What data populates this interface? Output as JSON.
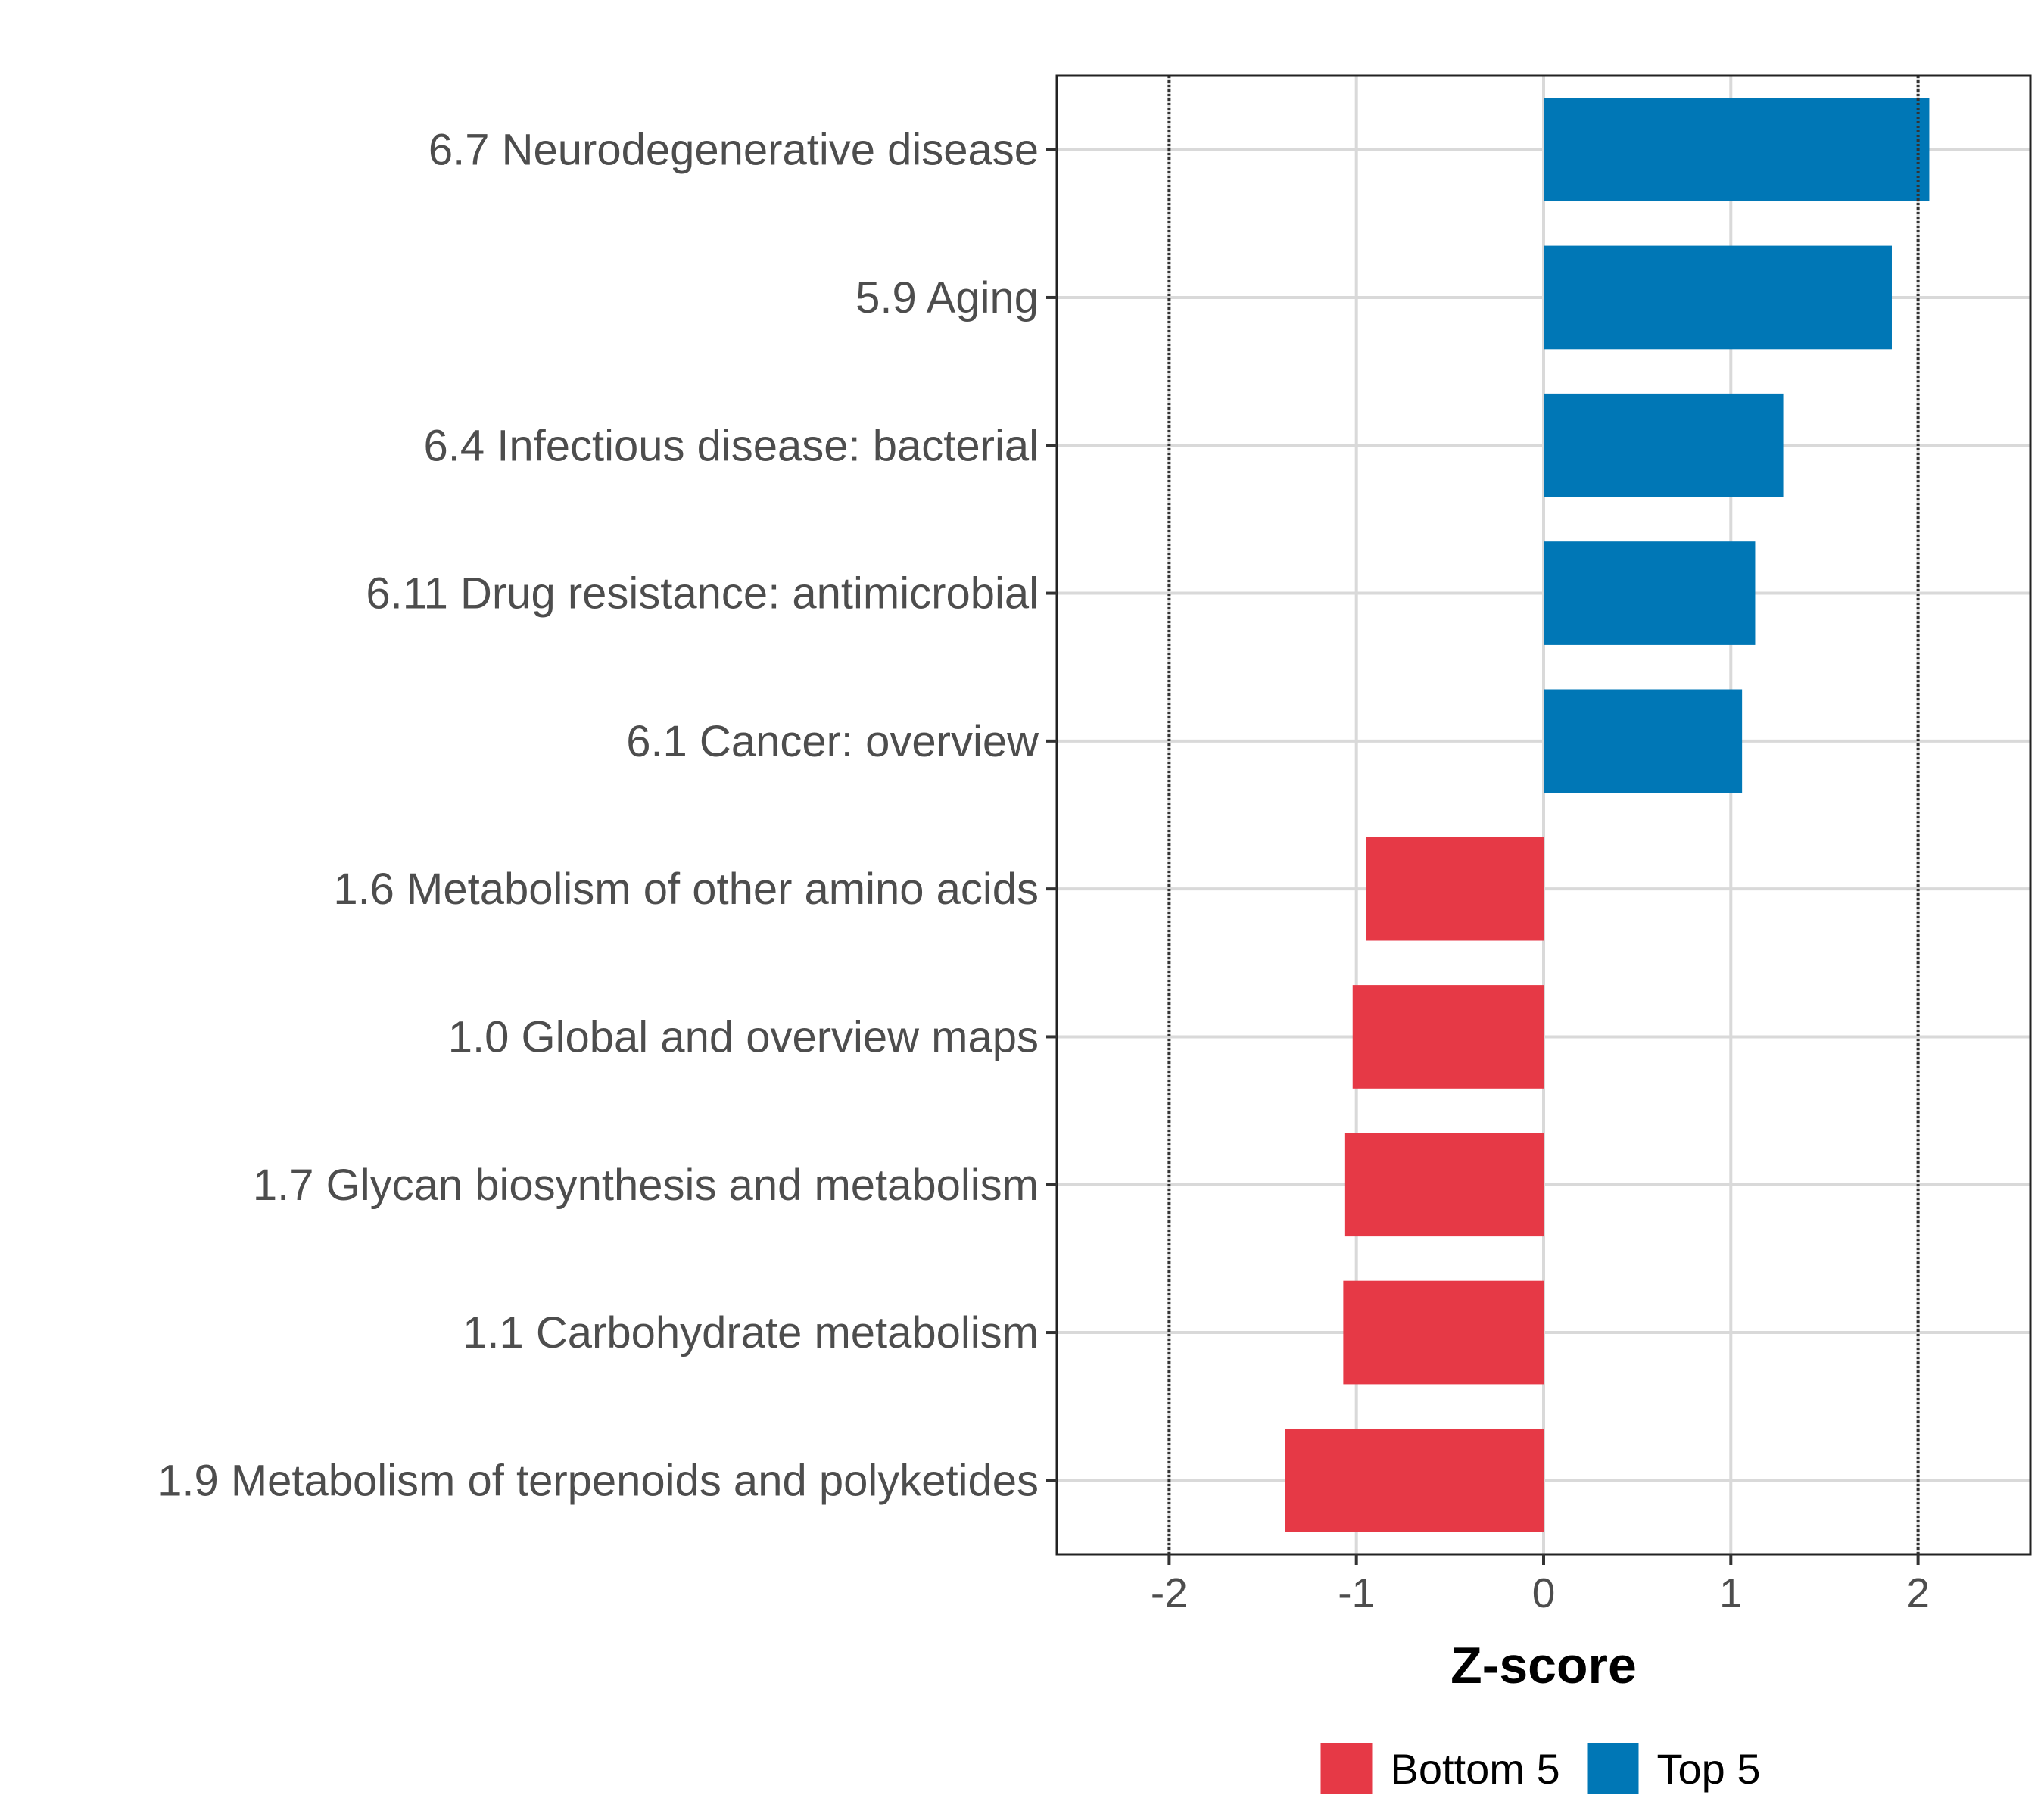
{
  "chart_data": {
    "type": "bar",
    "orientation": "horizontal",
    "categories": [
      "6.7 Neurodegenerative disease",
      "5.9 Aging",
      "6.4 Infectious disease: bacterial",
      "6.11 Drug resistance: antimicrobial",
      "6.1 Cancer: overview",
      "1.6 Metabolism of other amino acids",
      "1.0 Global and overview maps",
      "1.7 Glycan biosynthesis and metabolism",
      "1.1 Carbohydrate metabolism",
      "1.9 Metabolism of terpenoids and polyketides"
    ],
    "values": [
      2.06,
      1.86,
      1.28,
      1.13,
      1.06,
      -0.95,
      -1.02,
      -1.06,
      -1.07,
      -1.38
    ],
    "groups": [
      "Top 5",
      "Top 5",
      "Top 5",
      "Top 5",
      "Top 5",
      "Bottom 5",
      "Bottom 5",
      "Bottom 5",
      "Bottom 5",
      "Bottom 5"
    ],
    "xlabel": "Z-score",
    "xlim": [
      -2.6,
      2.6
    ],
    "x_ticks": [
      "-2",
      "-1",
      "0",
      "1",
      "2"
    ],
    "x_tick_values": [
      -2,
      -1,
      0,
      1,
      2
    ],
    "reference_lines": [
      -2,
      2
    ],
    "grid": true,
    "legend": {
      "placement": "bottom",
      "entries": [
        {
          "label": "Bottom 5",
          "color": "#e63946"
        },
        {
          "label": "Top 5",
          "color": "#0077b6"
        }
      ]
    },
    "colors": {
      "Top 5": "#0077b6",
      "Bottom 5": "#e63946"
    }
  }
}
